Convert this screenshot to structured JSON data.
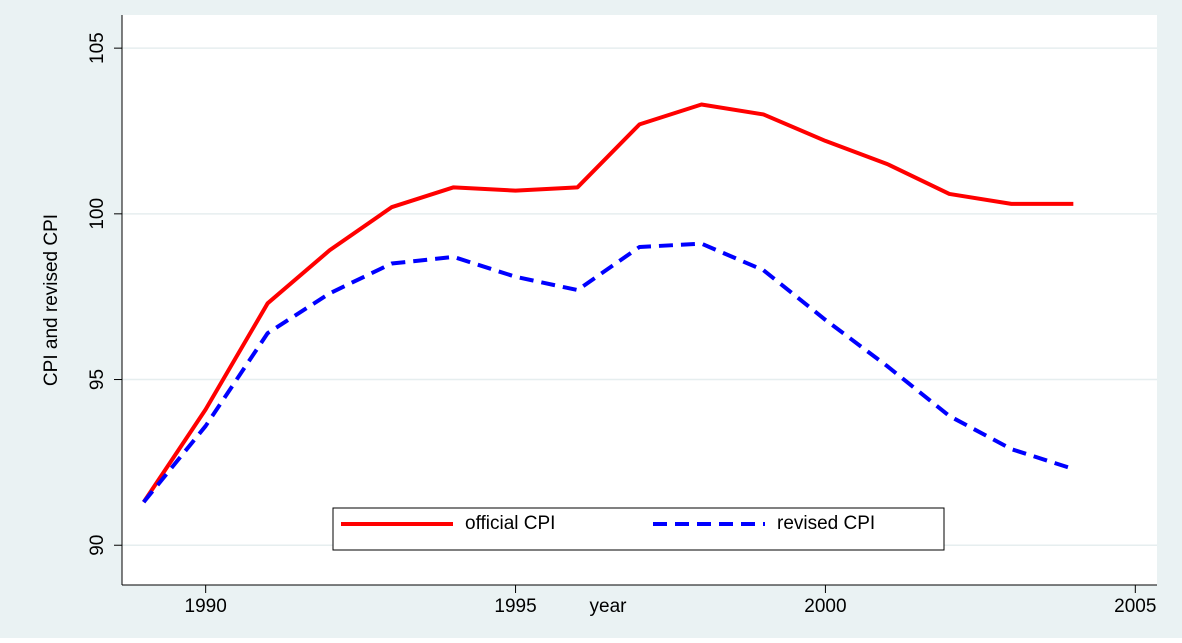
{
  "chart_data": {
    "type": "line",
    "x_label": "year",
    "y_label": "CPI and revised CPI",
    "x": [
      1989,
      1990,
      1991,
      1992,
      1993,
      1994,
      1995,
      1996,
      1997,
      1998,
      1999,
      2000,
      2001,
      2002,
      2003,
      2004
    ],
    "series": [
      {
        "name": "official CPI",
        "color": "#ff0000",
        "dash": "solid",
        "values": [
          91.3,
          94.1,
          97.3,
          98.9,
          100.2,
          100.8,
          100.7,
          100.8,
          102.7,
          103.3,
          103.0,
          102.2,
          101.5,
          100.6,
          100.3,
          100.3
        ]
      },
      {
        "name": "revised CPI",
        "color": "#0000ff",
        "dash": "dashed",
        "values": [
          91.3,
          93.6,
          96.4,
          97.6,
          98.5,
          98.7,
          98.1,
          97.7,
          99.0,
          99.1,
          98.3,
          96.8,
          95.4,
          93.9,
          92.9,
          92.3
        ]
      }
    ],
    "xlim": [
      1988.65,
      2005.35
    ],
    "xticks": [
      1990,
      1995,
      2000,
      2005
    ],
    "ylim": [
      88.8,
      106
    ],
    "yticks": [
      90,
      95,
      100,
      105
    ],
    "grid": true,
    "legend": "bottom"
  }
}
